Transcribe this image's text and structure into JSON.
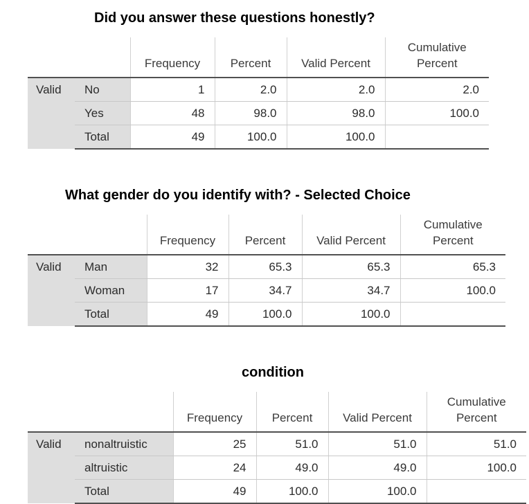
{
  "tables": [
    {
      "title": "Did you answer these questions honestly?",
      "headers": {
        "frequency": "Frequency",
        "percent": "Percent",
        "valid_percent": "Valid Percent",
        "cumulative_1": "Cumulative",
        "cumulative_2": "Percent"
      },
      "group_label": "Valid",
      "rows": [
        {
          "label": "No",
          "frequency": "1",
          "percent": "2.0",
          "valid_percent": "2.0",
          "cumulative": "2.0"
        },
        {
          "label": "Yes",
          "frequency": "48",
          "percent": "98.0",
          "valid_percent": "98.0",
          "cumulative": "100.0"
        },
        {
          "label": "Total",
          "frequency": "49",
          "percent": "100.0",
          "valid_percent": "100.0",
          "cumulative": ""
        }
      ]
    },
    {
      "title": "What gender do you identify with? - Selected Choice",
      "headers": {
        "frequency": "Frequency",
        "percent": "Percent",
        "valid_percent": "Valid Percent",
        "cumulative_1": "Cumulative",
        "cumulative_2": "Percent"
      },
      "group_label": "Valid",
      "rows": [
        {
          "label": "Man",
          "frequency": "32",
          "percent": "65.3",
          "valid_percent": "65.3",
          "cumulative": "65.3"
        },
        {
          "label": "Woman",
          "frequency": "17",
          "percent": "34.7",
          "valid_percent": "34.7",
          "cumulative": "100.0"
        },
        {
          "label": "Total",
          "frequency": "49",
          "percent": "100.0",
          "valid_percent": "100.0",
          "cumulative": ""
        }
      ]
    },
    {
      "title": "condition",
      "headers": {
        "frequency": "Frequency",
        "percent": "Percent",
        "valid_percent": "Valid Percent",
        "cumulative_1": "Cumulative",
        "cumulative_2": "Percent"
      },
      "group_label": "Valid",
      "rows": [
        {
          "label": "nonaltruistic",
          "frequency": "25",
          "percent": "51.0",
          "valid_percent": "51.0",
          "cumulative": "51.0"
        },
        {
          "label": "altruistic",
          "frequency": "24",
          "percent": "49.0",
          "valid_percent": "49.0",
          "cumulative": "100.0"
        },
        {
          "label": "Total",
          "frequency": "49",
          "percent": "100.0",
          "valid_percent": "100.0",
          "cumulative": ""
        }
      ]
    }
  ]
}
